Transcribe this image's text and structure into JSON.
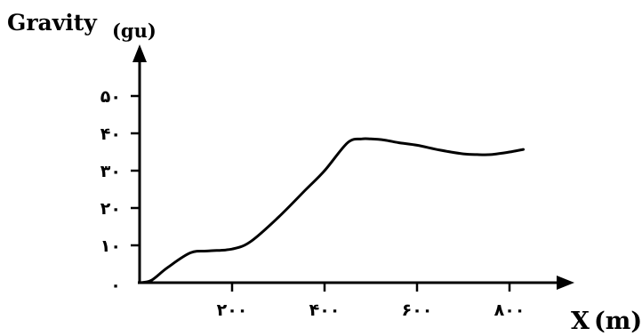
{
  "chart_data": {
    "type": "line",
    "ylabel_main": "Gravity",
    "ylabel_unit": "(gu)",
    "xlabel_main": "X",
    "xlabel_unit": "(m)",
    "xlim": [
      0,
      850
    ],
    "ylim": [
      0,
      50
    ],
    "x_ticks": [
      200,
      400,
      600,
      800
    ],
    "x_tick_labels": [
      "۲۰۰",
      "۴۰۰",
      "۶۰۰",
      "۸۰۰"
    ],
    "y_ticks": [
      0,
      10,
      20,
      30,
      40,
      50
    ],
    "y_tick_labels": [
      "۰",
      "۱۰",
      "۲۰",
      "۳۰",
      "۴۰",
      "۵۰"
    ],
    "grid": false,
    "series": [
      {
        "x": [
          0,
          25,
          60,
          110,
          150,
          200,
          240,
          300,
          360,
          400,
          450,
          480,
          500,
          530,
          560,
          600,
          650,
          700,
          730,
          760,
          800,
          830
        ],
        "y": [
          0,
          0.6,
          4,
          8,
          8.5,
          9,
          11,
          17.5,
          25,
          30,
          37.5,
          38.5,
          38.5,
          38.2,
          37.5,
          36.8,
          35.5,
          34.5,
          34.3,
          34.3,
          35.0,
          35.7
        ]
      }
    ]
  }
}
